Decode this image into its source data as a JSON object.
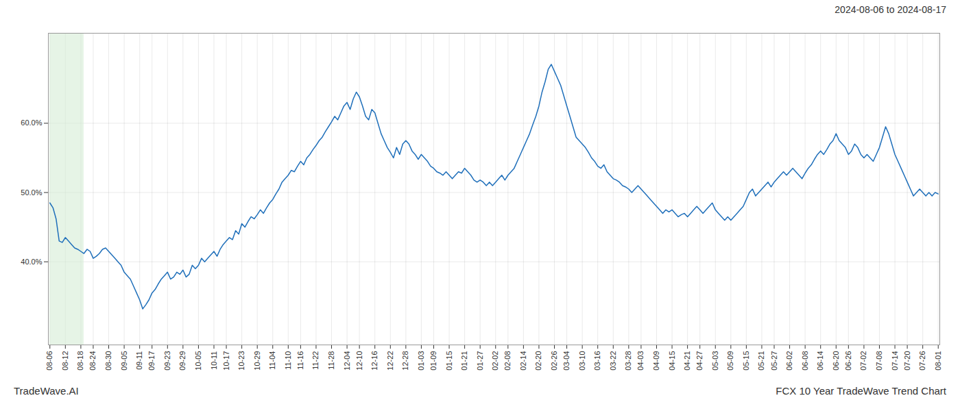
{
  "chart_data": {
    "type": "line",
    "title": "2024-08-06 to 2024-08-17",
    "annotations": [
      "TradeWave.AI",
      "FCX 10 Year TradeWave Trend Chart"
    ],
    "color": "#1f6fba",
    "ylim": [
      28,
      73
    ],
    "yticks": [
      {
        "value": 40,
        "label": "40.0%"
      },
      {
        "value": 50,
        "label": "50.0%"
      },
      {
        "value": 60,
        "label": "60.0%"
      }
    ],
    "grid": true,
    "shade": {
      "start": 0,
      "end": 11,
      "color": "#d6edd6"
    },
    "categories": [
      "08-06",
      null,
      null,
      null,
      null,
      "08-12",
      null,
      null,
      null,
      null,
      "08-18",
      null,
      null,
      null,
      "08-24",
      null,
      null,
      null,
      null,
      "08-30",
      null,
      null,
      null,
      null,
      "09-05",
      null,
      null,
      null,
      null,
      "09-11",
      null,
      null,
      null,
      "09-17",
      null,
      null,
      null,
      null,
      "09-23",
      null,
      null,
      null,
      null,
      "09-29",
      null,
      null,
      null,
      null,
      "10-05",
      null,
      null,
      null,
      null,
      "10-11",
      null,
      null,
      null,
      "10-17",
      null,
      null,
      null,
      null,
      "10-23",
      null,
      null,
      null,
      null,
      "10-29",
      null,
      null,
      null,
      null,
      "11-04",
      null,
      null,
      null,
      null,
      "11-10",
      null,
      null,
      null,
      "11-16",
      null,
      null,
      null,
      null,
      "11-22",
      null,
      null,
      null,
      null,
      "11-28",
      null,
      null,
      null,
      null,
      "12-04",
      null,
      null,
      null,
      "12-10",
      null,
      null,
      null,
      null,
      "12-16",
      null,
      null,
      null,
      null,
      "12-22",
      null,
      null,
      null,
      null,
      "12-28",
      null,
      null,
      null,
      null,
      "01-03",
      null,
      null,
      null,
      "01-09",
      null,
      null,
      null,
      null,
      "01-15",
      null,
      null,
      null,
      null,
      "01-21",
      null,
      null,
      null,
      null,
      "01-27",
      null,
      null,
      null,
      null,
      "02-02",
      null,
      null,
      null,
      "02-08",
      null,
      null,
      null,
      null,
      "02-14",
      null,
      null,
      null,
      null,
      "02-20",
      null,
      null,
      null,
      null,
      "02-26",
      null,
      null,
      null,
      "03-04",
      null,
      null,
      null,
      null,
      "03-10",
      null,
      null,
      null,
      null,
      "03-16",
      null,
      null,
      null,
      null,
      "03-22",
      null,
      null,
      null,
      null,
      "03-28",
      null,
      null,
      null,
      "04-03",
      null,
      null,
      null,
      null,
      "04-09",
      null,
      null,
      null,
      null,
      "04-15",
      null,
      null,
      null,
      null,
      "04-21",
      null,
      null,
      null,
      "04-27",
      null,
      null,
      null,
      null,
      "05-03",
      null,
      null,
      null,
      null,
      "05-09",
      null,
      null,
      null,
      null,
      "05-15",
      null,
      null,
      null,
      null,
      "05-21",
      null,
      null,
      null,
      "05-27",
      null,
      null,
      null,
      null,
      "06-02",
      null,
      null,
      null,
      null,
      "06-08",
      null,
      null,
      null,
      null,
      "06-14",
      null,
      null,
      null,
      null,
      "06-20",
      null,
      null,
      null,
      "06-26",
      null,
      null,
      null,
      null,
      "07-02",
      null,
      null,
      null,
      null,
      "07-08",
      null,
      null,
      null,
      null,
      "07-14",
      null,
      null,
      null,
      "07-20",
      null,
      null,
      null,
      null,
      "07-26",
      null,
      null,
      null,
      null,
      "08-01"
    ],
    "values": [
      48.5,
      47.8,
      46.2,
      43.0,
      42.8,
      43.5,
      43.0,
      42.5,
      42.0,
      41.8,
      41.5,
      41.2,
      41.8,
      41.5,
      40.5,
      40.8,
      41.2,
      41.8,
      42.0,
      41.5,
      41.0,
      40.5,
      40.0,
      39.5,
      38.5,
      38.0,
      37.5,
      36.5,
      35.5,
      34.5,
      33.2,
      33.8,
      34.5,
      35.5,
      36.0,
      36.8,
      37.5,
      38.0,
      38.5,
      37.5,
      37.8,
      38.5,
      38.2,
      38.8,
      37.8,
      38.2,
      39.5,
      39.0,
      39.5,
      40.5,
      40.0,
      40.5,
      41.0,
      41.5,
      40.8,
      41.8,
      42.5,
      43.0,
      43.5,
      43.2,
      44.5,
      44.0,
      45.5,
      45.0,
      45.8,
      46.5,
      46.2,
      46.8,
      47.5,
      47.0,
      47.8,
      48.5,
      49.0,
      49.8,
      50.5,
      51.5,
      52.0,
      52.5,
      53.2,
      53.0,
      53.8,
      54.5,
      54.0,
      55.0,
      55.5,
      56.2,
      56.8,
      57.5,
      58.0,
      58.8,
      59.5,
      60.2,
      61.0,
      60.5,
      61.5,
      62.5,
      63.0,
      62.0,
      63.5,
      64.5,
      63.8,
      62.5,
      61.0,
      60.5,
      62.0,
      61.5,
      60.0,
      58.5,
      57.5,
      56.5,
      55.8,
      55.0,
      56.5,
      55.5,
      57.0,
      57.5,
      57.0,
      56.0,
      55.5,
      54.8,
      55.5,
      55.0,
      54.5,
      53.8,
      53.5,
      53.0,
      52.8,
      52.5,
      53.0,
      52.5,
      52.0,
      52.5,
      53.0,
      52.8,
      53.5,
      53.0,
      52.5,
      51.8,
      51.5,
      51.8,
      51.5,
      51.0,
      51.5,
      51.0,
      51.5,
      52.0,
      52.5,
      51.8,
      52.5,
      53.0,
      53.5,
      54.5,
      55.5,
      56.5,
      57.5,
      58.5,
      59.8,
      61.0,
      62.5,
      64.5,
      66.0,
      67.8,
      68.5,
      67.5,
      66.5,
      65.5,
      64.0,
      62.5,
      61.0,
      59.5,
      58.0,
      57.5,
      57.0,
      56.5,
      55.8,
      55.0,
      54.5,
      53.8,
      53.5,
      54.0,
      53.0,
      52.5,
      52.0,
      51.8,
      51.5,
      51.0,
      50.8,
      50.5,
      50.0,
      50.5,
      51.0,
      50.5,
      50.0,
      49.5,
      49.0,
      48.5,
      48.0,
      47.5,
      47.0,
      47.5,
      47.2,
      47.5,
      47.0,
      46.5,
      46.8,
      47.0,
      46.5,
      47.0,
      47.5,
      48.0,
      47.5,
      47.0,
      47.5,
      48.0,
      48.5,
      47.5,
      47.0,
      46.5,
      46.0,
      46.5,
      46.0,
      46.5,
      47.0,
      47.5,
      48.0,
      49.0,
      50.0,
      50.5,
      49.5,
      50.0,
      50.5,
      51.0,
      51.5,
      50.8,
      51.5,
      52.0,
      52.5,
      53.0,
      52.5,
      53.0,
      53.5,
      53.0,
      52.5,
      52.0,
      52.8,
      53.5,
      54.0,
      54.8,
      55.5,
      56.0,
      55.5,
      56.2,
      57.0,
      57.5,
      58.5,
      57.5,
      57.0,
      56.5,
      55.5,
      56.0,
      57.0,
      56.5,
      55.5,
      55.0,
      55.5,
      55.0,
      54.5,
      55.5,
      56.5,
      58.0,
      59.5,
      58.5,
      57.0,
      55.5,
      54.5,
      53.5,
      52.5,
      51.5,
      50.5,
      49.5,
      50.0,
      50.5,
      50.0,
      49.5,
      50.0,
      49.5,
      50.0,
      49.8
    ]
  }
}
